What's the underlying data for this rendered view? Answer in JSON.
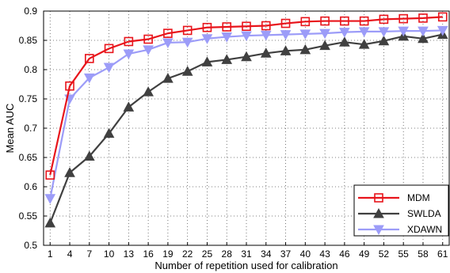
{
  "chart_data": {
    "type": "line",
    "title": "",
    "xlabel": "Number of repetition used for calibration",
    "ylabel": "Mean AUC",
    "ylim": [
      0.5,
      0.9
    ],
    "yticks": [
      "0.5",
      "0.55",
      "0.6",
      "0.65",
      "0.7",
      "0.75",
      "0.8",
      "0.85",
      "0.9"
    ],
    "grid": true,
    "legend_position": "bottom-right",
    "x": [
      1,
      4,
      7,
      10,
      13,
      16,
      19,
      22,
      25,
      28,
      31,
      34,
      37,
      40,
      43,
      46,
      49,
      52,
      55,
      58,
      61
    ],
    "xtick_labels": [
      "1",
      "4",
      "7",
      "10",
      "13",
      "16",
      "19",
      "22",
      "25",
      "28",
      "31",
      "34",
      "37",
      "40",
      "43",
      "46",
      "49",
      "52",
      "55",
      "58",
      "61"
    ],
    "series": [
      {
        "name": "MDM",
        "color": "#e8141b",
        "marker": "square",
        "values": [
          0.62,
          0.772,
          0.819,
          0.836,
          0.848,
          0.852,
          0.862,
          0.867,
          0.872,
          0.873,
          0.874,
          0.875,
          0.879,
          0.882,
          0.883,
          0.883,
          0.883,
          0.886,
          0.887,
          0.888,
          0.89
        ]
      },
      {
        "name": "SWLDA",
        "color": "#404040",
        "marker": "triangle-up",
        "values": [
          0.538,
          0.624,
          0.652,
          0.691,
          0.736,
          0.762,
          0.785,
          0.797,
          0.813,
          0.817,
          0.822,
          0.828,
          0.832,
          0.834,
          0.841,
          0.847,
          0.843,
          0.849,
          0.857,
          0.853,
          0.86
        ]
      },
      {
        "name": "XDAWN",
        "color": "#9c9cf8",
        "marker": "triangle-down",
        "values": [
          0.58,
          0.75,
          0.786,
          0.804,
          0.827,
          0.834,
          0.846,
          0.847,
          0.853,
          0.856,
          0.858,
          0.859,
          0.86,
          0.861,
          0.862,
          0.864,
          0.865,
          0.865,
          0.866,
          0.866,
          0.867
        ]
      }
    ]
  }
}
